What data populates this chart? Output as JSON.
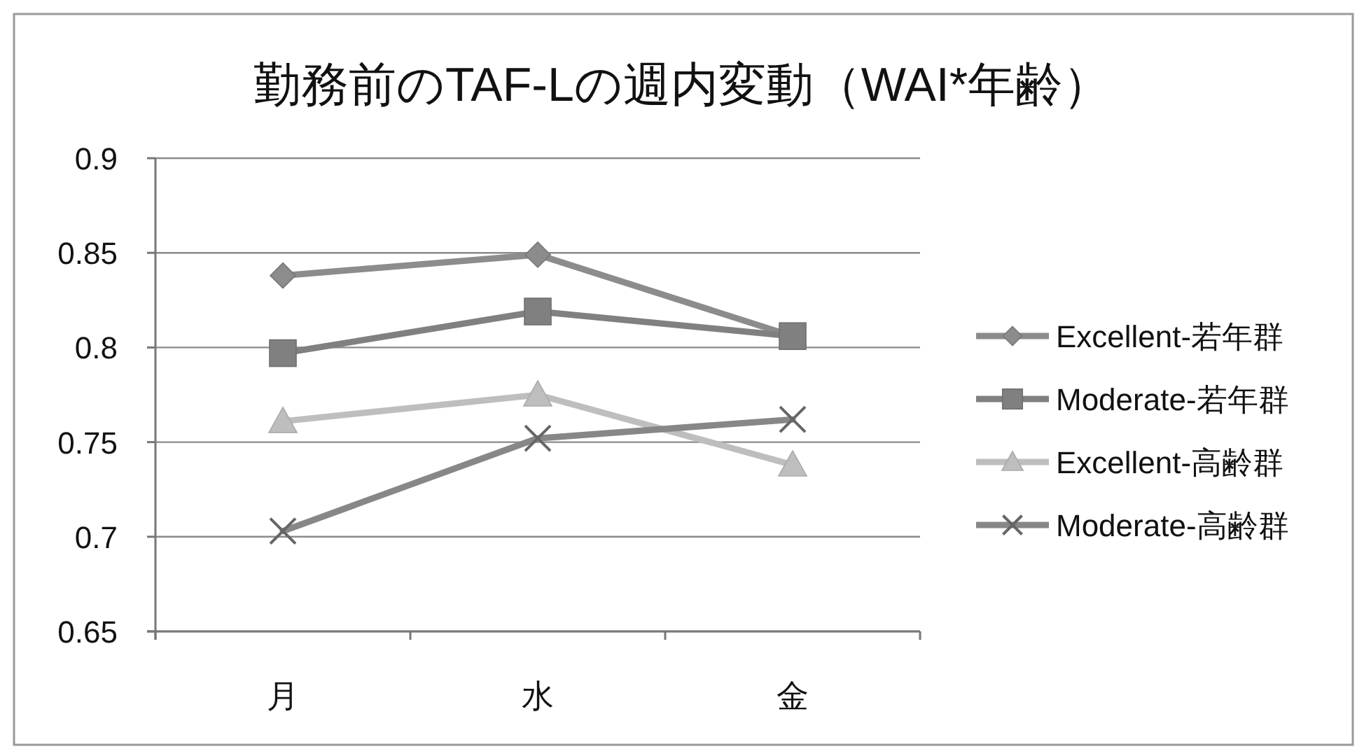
{
  "chart_data": {
    "type": "line",
    "title": "勤務前のTAF-Lの週内変動（WAI*年齢）",
    "categories": [
      "月",
      "水",
      "金"
    ],
    "series": [
      {
        "name": "Excellent-若年群",
        "color": "#8c8c8c",
        "marker": "diamond",
        "values": [
          0.838,
          0.849,
          0.806
        ]
      },
      {
        "name": "Moderate-若年群",
        "color": "#808080",
        "marker": "square",
        "values": [
          0.797,
          0.819,
          0.806
        ]
      },
      {
        "name": "Excellent-高齢群",
        "color": "#bebebe",
        "marker": "triangle",
        "values": [
          0.761,
          0.775,
          0.738
        ]
      },
      {
        "name": "Moderate-高齢群",
        "color": "#878787",
        "marker": "cross",
        "values": [
          0.703,
          0.752,
          0.762
        ]
      }
    ],
    "ylim": [
      0.65,
      0.9
    ],
    "yticks": [
      0.65,
      0.7,
      0.75,
      0.8,
      0.85,
      0.9
    ],
    "grid": "y",
    "legend": "right",
    "line_style": "solid"
  }
}
